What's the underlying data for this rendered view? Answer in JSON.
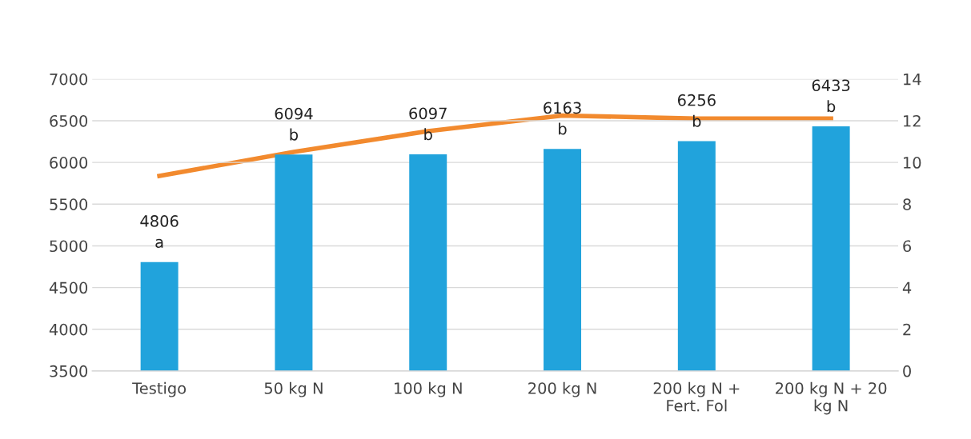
{
  "chart_data": {
    "type": "bar",
    "categories": [
      "Testigo",
      "50 kg N",
      "100 kg N",
      "200 kg N",
      "200 kg N + Fert. Fol",
      "200 kg N + 20 kg N"
    ],
    "series": [
      {
        "type": "bar",
        "color": "#21a3dc",
        "values": [
          4806,
          6094,
          6097,
          6163,
          6256,
          6433
        ],
        "value_labels": [
          "4806\na",
          "6094\nb",
          "6097\nb",
          "6163\nb",
          "6256\nb",
          "6433\nb"
        ]
      },
      {
        "type": "line",
        "axis": "y2",
        "color": "#f28a2e",
        "values": [
          9.35,
          10.5,
          11.5,
          12.25,
          12.1,
          12.1
        ]
      }
    ],
    "ylim": [
      3500,
      7000
    ],
    "yticks": [
      3500,
      4000,
      4500,
      5000,
      5500,
      6000,
      6500,
      7000
    ],
    "y2lim": [
      0,
      14
    ],
    "y2ticks": [
      0,
      2,
      4,
      6,
      8,
      10,
      12,
      14
    ],
    "grid": "y",
    "marker": "none",
    "line_style": "solid"
  }
}
